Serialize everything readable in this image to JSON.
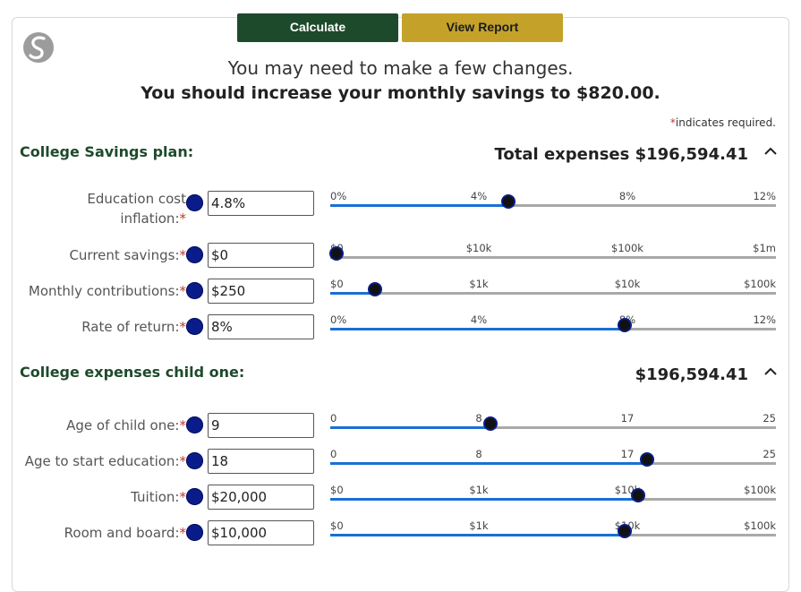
{
  "toolbar": {
    "calculate_label": "Calculate",
    "report_label": "View Report"
  },
  "message": {
    "line1": "You may need to make a few changes.",
    "line2": "You should increase your monthly savings to $820.00."
  },
  "required_note": {
    "star": "*",
    "text": "indicates required."
  },
  "savings_plan": {
    "title": "College Savings plan:",
    "total": "Total expenses $196,594.41",
    "fields": [
      {
        "label_line1": "Education cost",
        "label_line2": "inflation:",
        "value": "4.8%",
        "ticks": [
          "0%",
          "4%",
          "8%",
          "12%"
        ],
        "level": 0.4
      },
      {
        "label_line1": "",
        "label_line2": "Current savings:",
        "value": "$0",
        "ticks": [
          "$0",
          "$10k",
          "$100k",
          "$1m"
        ],
        "level": 0.0
      },
      {
        "label_line1": "",
        "label_line2": "Monthly contributions:",
        "value": "$250",
        "ticks": [
          "$0",
          "$1k",
          "$10k",
          "$100k"
        ],
        "level": 0.1
      },
      {
        "label_line1": "",
        "label_line2": "Rate of return:",
        "value": "8%",
        "ticks": [
          "0%",
          "4%",
          "8%",
          "12%"
        ],
        "level": 0.66
      }
    ]
  },
  "child_one": {
    "title": "College expenses child one:",
    "total": "$196,594.41",
    "fields": [
      {
        "label_line1": "",
        "label_line2": "Age of child one:",
        "value": "9",
        "ticks": [
          "0",
          "8",
          "17",
          "25"
        ],
        "level": 0.36
      },
      {
        "label_line1": "",
        "label_line2": "Age to start education:",
        "value": "18",
        "ticks": [
          "0",
          "8",
          "17",
          "25"
        ],
        "level": 0.71
      },
      {
        "label_line1": "",
        "label_line2": "Tuition:",
        "value": "$20,000",
        "ticks": [
          "$0",
          "$1k",
          "$10k",
          "$100k"
        ],
        "level": 0.69
      },
      {
        "label_line1": "",
        "label_line2": "Room and board:",
        "value": "$10,000",
        "ticks": [
          "$0",
          "$1k",
          "$10k",
          "$100k"
        ],
        "level": 0.66
      }
    ]
  },
  "help_glyph": "?",
  "icons": {
    "logo": "site-logo-icon",
    "help": "help-icon",
    "collapse": "chevron-up-icon"
  }
}
